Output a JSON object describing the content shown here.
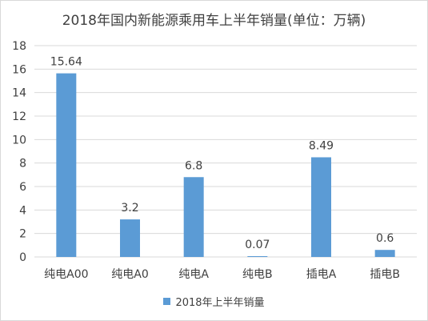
{
  "chart_data": {
    "type": "bar",
    "title": "2018年国内新能源乘用车上半年销量(单位：万辆)",
    "categories": [
      "纯电A00",
      "纯电A0",
      "纯电A",
      "纯电B",
      "插电A",
      "插电B"
    ],
    "series": [
      {
        "name": "2018年上半年销量",
        "values": [
          15.64,
          3.2,
          6.8,
          0.07,
          8.49,
          0.6
        ],
        "color": "#5b9bd5"
      }
    ],
    "data_labels": [
      "15.64",
      "3.2",
      "6.8",
      "0.07",
      "8.49",
      "0.6"
    ],
    "ylim": [
      0,
      18
    ],
    "yticks": [
      0,
      2,
      4,
      6,
      8,
      10,
      12,
      14,
      16,
      18
    ],
    "xlabel": "",
    "ylabel": "",
    "grid": true,
    "legend_position": "bottom"
  }
}
